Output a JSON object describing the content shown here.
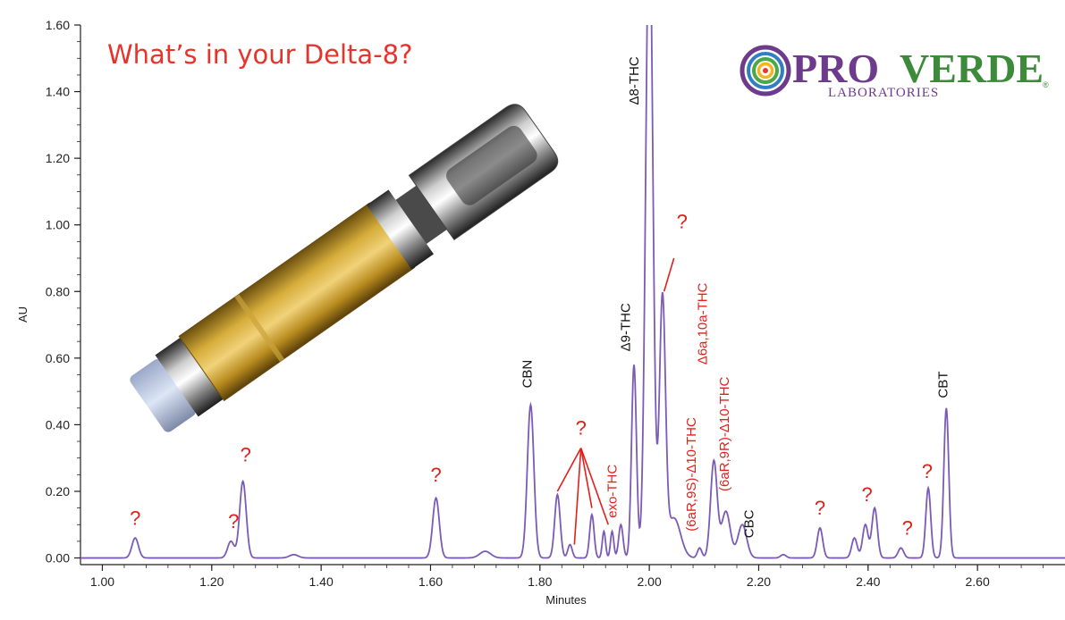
{
  "headline": "What’s in your Delta-8?",
  "logo": {
    "pro": "PRO",
    "verde": "VERDE",
    "sub": "LABORATORIES",
    "mark": "®"
  },
  "colors": {
    "trace": "#7b5bb5",
    "annotation": "#e0201b",
    "headline": "#e8332a"
  },
  "chart_data": {
    "type": "line",
    "xlabel": "Minutes",
    "ylabel": "AU",
    "xlim": [
      0.96,
      2.76
    ],
    "ylim": [
      -0.02,
      1.6
    ],
    "x_ticks": [
      "1.00",
      "1.20",
      "1.40",
      "1.60",
      "1.80",
      "2.00",
      "2.20",
      "2.40",
      "2.60"
    ],
    "y_ticks": [
      "0.00",
      "0.20",
      "0.40",
      "0.60",
      "0.80",
      "1.00",
      "1.20",
      "1.40",
      "1.60"
    ],
    "grid": false,
    "baseline": 0.0,
    "peaks": [
      {
        "x": 1.06,
        "y": 0.06,
        "width": 0.006
      },
      {
        "x": 1.235,
        "y": 0.05,
        "width": 0.006
      },
      {
        "x": 1.257,
        "y": 0.23,
        "width": 0.006
      },
      {
        "x": 1.35,
        "y": 0.01,
        "width": 0.008
      },
      {
        "x": 1.61,
        "y": 0.18,
        "width": 0.006
      },
      {
        "x": 1.7,
        "y": 0.02,
        "width": 0.01
      },
      {
        "x": 1.783,
        "y": 0.46,
        "width": 0.006
      },
      {
        "x": 1.832,
        "y": 0.19,
        "width": 0.005
      },
      {
        "x": 1.855,
        "y": 0.04,
        "width": 0.004
      },
      {
        "x": 1.895,
        "y": 0.13,
        "width": 0.004
      },
      {
        "x": 1.917,
        "y": 0.08,
        "width": 0.003
      },
      {
        "x": 1.932,
        "y": 0.08,
        "width": 0.003
      },
      {
        "x": 1.948,
        "y": 0.1,
        "width": 0.004
      },
      {
        "x": 1.972,
        "y": 0.58,
        "width": 0.0045
      },
      {
        "x": 2.0,
        "y": 1.95,
        "width": 0.0065
      },
      {
        "x": 2.024,
        "y": 0.77,
        "width": 0.0055
      },
      {
        "x": 2.045,
        "y": 0.12,
        "width": 0.012
      },
      {
        "x": 2.092,
        "y": 0.03,
        "width": 0.004
      },
      {
        "x": 2.118,
        "y": 0.29,
        "width": 0.006
      },
      {
        "x": 2.14,
        "y": 0.14,
        "width": 0.008
      },
      {
        "x": 2.17,
        "y": 0.1,
        "width": 0.008
      },
      {
        "x": 2.245,
        "y": 0.01,
        "width": 0.005
      },
      {
        "x": 2.312,
        "y": 0.09,
        "width": 0.005
      },
      {
        "x": 2.375,
        "y": 0.06,
        "width": 0.005
      },
      {
        "x": 2.395,
        "y": 0.1,
        "width": 0.005
      },
      {
        "x": 2.412,
        "y": 0.15,
        "width": 0.005
      },
      {
        "x": 2.46,
        "y": 0.03,
        "width": 0.005
      },
      {
        "x": 2.51,
        "y": 0.21,
        "width": 0.0045
      },
      {
        "x": 2.543,
        "y": 0.45,
        "width": 0.0045
      }
    ],
    "annotations": [
      {
        "text": "Δ8-THC",
        "x": 1.98,
        "y": 1.36,
        "rotated": true,
        "color": "black"
      },
      {
        "text": "Δ9-THC",
        "x": 1.965,
        "y": 0.62,
        "rotated": true,
        "color": "black"
      },
      {
        "text": "CBN",
        "x": 1.785,
        "y": 0.51,
        "rotated": true,
        "color": "black"
      },
      {
        "text": "exo-THC",
        "x": 1.94,
        "y": 0.12,
        "rotated": true,
        "color": "red"
      },
      {
        "text": "(6aR,9S)-Δ10-THC",
        "x": 2.085,
        "y": 0.08,
        "rotated": true,
        "color": "red"
      },
      {
        "text": "Δ6a,10a-THC",
        "x": 2.105,
        "y": 0.58,
        "rotated": true,
        "color": "red"
      },
      {
        "text": "(6aR,9R)-Δ10-THC",
        "x": 2.145,
        "y": 0.2,
        "rotated": true,
        "color": "red"
      },
      {
        "text": "CBC",
        "x": 2.19,
        "y": 0.06,
        "rotated": true,
        "color": "black"
      },
      {
        "text": "CBT",
        "x": 2.545,
        "y": 0.48,
        "rotated": true,
        "color": "black"
      }
    ],
    "question_marks": [
      {
        "x": 1.06,
        "y": 0.1
      },
      {
        "x": 1.24,
        "y": 0.09
      },
      {
        "x": 1.262,
        "y": 0.29
      },
      {
        "x": 1.61,
        "y": 0.23
      },
      {
        "x": 1.875,
        "y": 0.37
      },
      {
        "x": 2.06,
        "y": 0.99
      },
      {
        "x": 2.312,
        "y": 0.13
      },
      {
        "x": 2.398,
        "y": 0.17
      },
      {
        "x": 2.472,
        "y": 0.07
      },
      {
        "x": 2.508,
        "y": 0.24
      }
    ],
    "pointer_lines": [
      {
        "from": [
          1.875,
          0.33
        ],
        "to": [
          1.832,
          0.2
        ]
      },
      {
        "from": [
          1.875,
          0.33
        ],
        "to": [
          1.863,
          0.04
        ]
      },
      {
        "from": [
          1.875,
          0.33
        ],
        "to": [
          1.895,
          0.15
        ]
      },
      {
        "from": [
          1.875,
          0.33
        ],
        "to": [
          1.925,
          0.1
        ]
      },
      {
        "from": [
          2.045,
          0.9
        ],
        "to": [
          2.027,
          0.8
        ]
      }
    ]
  }
}
